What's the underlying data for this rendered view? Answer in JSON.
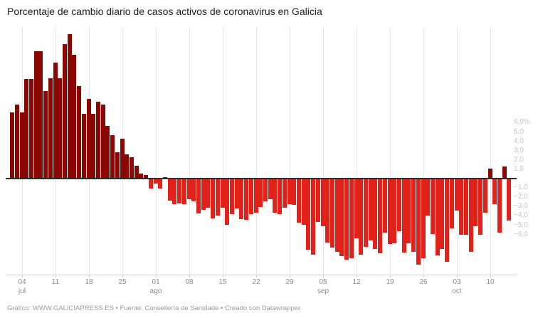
{
  "title": "Porcentaje de cambio diario de casos activos de coronavirus en Galicia",
  "footer": "Gráfico: WWW.GALICIAPRESS.ES • Fuente: Consellería de Sanidade • Creado con Datawrapper",
  "colors": {
    "positive_bar": "#8b0703",
    "negative_bar": "#e2211a",
    "zero_line": "#2b2b2b",
    "gridline": "#e7e7e7",
    "axis_line": "#cfcfcf",
    "x_tick_label": "#8c8c8c",
    "y_tick_label": "#c6c6c6",
    "title_text": "#1d1d1d",
    "footer_text": "#9b9b9b"
  },
  "chart_data": {
    "type": "bar",
    "title": "Porcentaje de cambio diario de casos activos de coronavirus en Galicia",
    "unit": "%",
    "grid": "vertical-weekly",
    "legend": "none",
    "y_axis_side": "right",
    "ylim": [
      -10.3,
      16.3
    ],
    "y_ticks": [
      {
        "label": "6,0%",
        "value": 6
      },
      {
        "label": "5,0",
        "value": 5
      },
      {
        "label": "4,0",
        "value": 4
      },
      {
        "label": "3,0",
        "value": 3
      },
      {
        "label": "2,0",
        "value": 2
      },
      {
        "label": "1,0",
        "value": 1
      },
      {
        "label": "−1,0",
        "value": -1
      },
      {
        "label": "−2,0",
        "value": -2
      },
      {
        "label": "−3,0",
        "value": -3
      },
      {
        "label": "−4,0",
        "value": -4
      },
      {
        "label": "−5,0",
        "value": -5
      },
      {
        "label": "−6,0",
        "value": -6
      }
    ],
    "x_ticks": [
      {
        "label": "04",
        "sublabel": "jul",
        "day": 2
      },
      {
        "label": "11",
        "sublabel": "",
        "day": 9
      },
      {
        "label": "18",
        "sublabel": "",
        "day": 16
      },
      {
        "label": "25",
        "sublabel": "",
        "day": 23
      },
      {
        "label": "01",
        "sublabel": "ago",
        "day": 30
      },
      {
        "label": "08",
        "sublabel": "",
        "day": 37
      },
      {
        "label": "15",
        "sublabel": "",
        "day": 44
      },
      {
        "label": "22",
        "sublabel": "",
        "day": 51
      },
      {
        "label": "29",
        "sublabel": "",
        "day": 58
      },
      {
        "label": "05",
        "sublabel": "sep",
        "day": 65
      },
      {
        "label": "12",
        "sublabel": "",
        "day": 72
      },
      {
        "label": "19",
        "sublabel": "",
        "day": 79
      },
      {
        "label": "26",
        "sublabel": "",
        "day": 86
      },
      {
        "label": "03",
        "sublabel": "oct",
        "day": 93
      },
      {
        "label": "10",
        "sublabel": "",
        "day": 100
      }
    ],
    "x": [
      "02 jul",
      "03 jul",
      "04 jul",
      "05 jul",
      "06 jul",
      "07 jul",
      "08 jul",
      "09 jul",
      "10 jul",
      "11 jul",
      "12 jul",
      "13 jul",
      "14 jul",
      "15 jul",
      "16 jul",
      "17 jul",
      "18 jul",
      "19 jul",
      "20 jul",
      "21 jul",
      "22 jul",
      "23 jul",
      "24 jul",
      "25 jul",
      "26 jul",
      "27 jul",
      "28 jul",
      "29 jul",
      "30 jul",
      "31 jul",
      "01 ago",
      "02 ago",
      "03 ago",
      "04 ago",
      "05 ago",
      "06 ago",
      "07 ago",
      "08 ago",
      "09 ago",
      "10 ago",
      "11 ago",
      "12 ago",
      "13 ago",
      "14 ago",
      "15 ago",
      "16 ago",
      "17 ago",
      "18 ago",
      "19 ago",
      "20 ago",
      "21 ago",
      "22 ago",
      "23 ago",
      "24 ago",
      "25 ago",
      "26 ago",
      "27 ago",
      "28 ago",
      "29 ago",
      "30 ago",
      "31 ago",
      "01 sep",
      "02 sep",
      "03 sep",
      "04 sep",
      "05 sep",
      "06 sep",
      "07 sep",
      "08 sep",
      "09 sep",
      "10 sep",
      "11 sep",
      "12 sep",
      "13 sep",
      "14 sep",
      "15 sep",
      "16 sep",
      "17 sep",
      "18 sep",
      "19 sep",
      "20 sep",
      "21 sep",
      "22 sep",
      "23 sep",
      "24 sep",
      "25 sep",
      "26 sep",
      "27 sep",
      "28 sep",
      "29 sep",
      "30 sep",
      "01 oct",
      "02 oct",
      "03 oct",
      "04 oct",
      "05 oct",
      "06 oct",
      "07 oct",
      "08 oct",
      "09 oct",
      "10 oct",
      "11 oct",
      "12 oct",
      "13 oct",
      "14 oct"
    ],
    "values": [
      7.1,
      8.0,
      7.1,
      10.7,
      10.7,
      13.7,
      13.7,
      9.4,
      10.8,
      12.5,
      10.8,
      14.5,
      15.5,
      13.3,
      10.0,
      7.0,
      8.6,
      7.0,
      8.3,
      8.0,
      5.7,
      4.7,
      2.9,
      4.3,
      2.6,
      2.3,
      1.4,
      0.6,
      0.4,
      -1.0,
      -0.5,
      -1.0,
      0.2,
      -2.3,
      -2.7,
      -2.6,
      -2.7,
      -2.2,
      -2.4,
      -3.7,
      -3.3,
      -3.1,
      -4.2,
      -3.9,
      -3.1,
      -4.9,
      -3.8,
      -3.2,
      -4.3,
      -4.4,
      -3.8,
      -3.6,
      -3.0,
      -2.4,
      -2.2,
      -3.6,
      -3.8,
      -3.1,
      -2.7,
      -2.8,
      -4.7,
      -4.9,
      -7.6,
      -8.1,
      -4.6,
      -5.1,
      -6.8,
      -7.4,
      -7.8,
      -8.3,
      -8.7,
      -8.5,
      -6.4,
      -8.1,
      -7.3,
      -6.6,
      -7.5,
      -8.0,
      -5.8,
      -7.0,
      -6.9,
      -5.6,
      -7.9,
      -6.9,
      -7.8,
      -9.2,
      -8.5,
      -3.9,
      -5.9,
      -8.2,
      -7.5,
      -8.9,
      -5.3,
      -3.4,
      -6.0,
      -6.0,
      -7.8,
      -5.1,
      -6.0,
      -3.6,
      1.1,
      -2.7,
      -5.8,
      1.3,
      -4.5
    ]
  }
}
